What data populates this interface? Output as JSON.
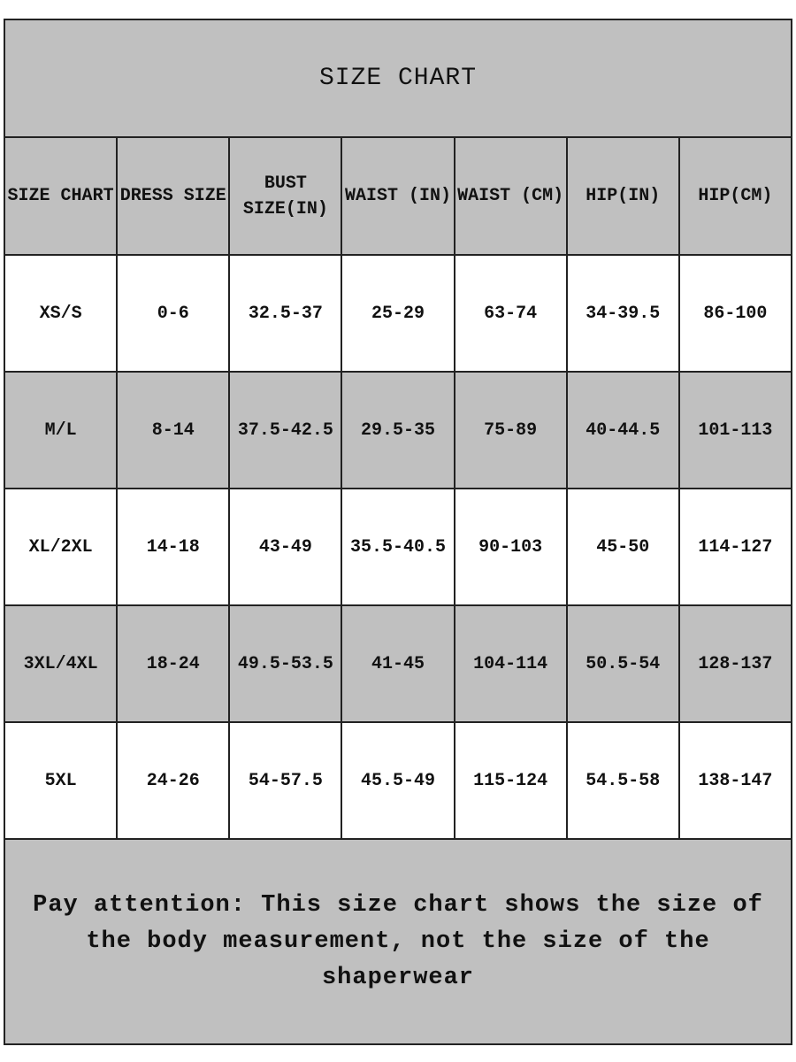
{
  "title": "SIZE CHART",
  "headers": [
    "SIZE CHART",
    "DRESS SIZE",
    "BUST SIZE(IN)",
    "WAIST (IN)",
    "WAIST (CM)",
    "HIP(IN)",
    "HIP(CM)"
  ],
  "rows": [
    [
      "XS/S",
      "0-6",
      "32.5-37",
      "25-29",
      "63-74",
      "34-39.5",
      "86-100"
    ],
    [
      "M/L",
      "8-14",
      "37.5-42.5",
      "29.5-35",
      "75-89",
      "40-44.5",
      "101-113"
    ],
    [
      "XL/2XL",
      "14-18",
      "43-49",
      "35.5-40.5",
      "90-103",
      "45-50",
      "114-127"
    ],
    [
      "3XL/4XL",
      "18-24",
      "49.5-53.5",
      "41-45",
      "104-114",
      "50.5-54",
      "128-137"
    ],
    [
      "5XL",
      "24-26",
      "54-57.5",
      "45.5-49",
      "115-124",
      "54.5-58",
      "138-147"
    ]
  ],
  "note": "Pay attention: This size chart shows the size of the body measurement, not the size of the shaperwear",
  "colors": {
    "shade": "#c0c0c0",
    "plain": "#ffffff",
    "border": "#222222"
  }
}
